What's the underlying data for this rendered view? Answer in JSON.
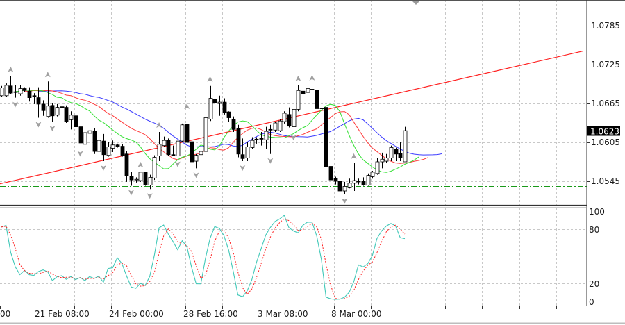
{
  "chart_data": {
    "type": "candlestick",
    "title": "",
    "colors": {
      "bull_body": "#ffffff",
      "bear_body": "#000000",
      "wick": "#000000",
      "jaw": "#3b3bff",
      "teeth": "#ff3b3b",
      "lips": "#35e035",
      "trendline": "#ff2020",
      "support_green": "#1a9a1a",
      "support_orange": "#ff5a1f",
      "bid_line": "#c0c0c0",
      "stoch_main": "#40c8b8",
      "stoch_signal": "#ff2020",
      "grid": "#c8c8c8",
      "fractal": "#a0a0a0"
    },
    "ohlc": [
      [
        1.0677,
        1.0692,
        1.0675,
        1.0689
      ],
      [
        1.0677,
        1.0696,
        1.0675,
        1.0693
      ],
      [
        1.0692,
        1.0707,
        1.0679,
        1.0681
      ],
      [
        1.0682,
        1.0693,
        1.0674,
        1.0683
      ],
      [
        1.068,
        1.0693,
        1.0677,
        1.0688
      ],
      [
        1.0688,
        1.069,
        1.0683,
        1.0685
      ],
      [
        1.0684,
        1.069,
        1.0668,
        1.0674
      ],
      [
        1.0677,
        1.0681,
        1.0664,
        1.0676
      ],
      [
        1.0674,
        1.069,
        1.0643,
        1.0664
      ],
      [
        1.0664,
        1.067,
        1.0646,
        1.0654
      ],
      [
        1.0645,
        1.0699,
        1.0643,
        1.0661
      ],
      [
        1.0662,
        1.0666,
        1.0637,
        1.0646
      ],
      [
        1.0647,
        1.0664,
        1.0645,
        1.0659
      ],
      [
        1.066,
        1.0664,
        1.0656,
        1.0659
      ],
      [
        1.0659,
        1.0662,
        1.0635,
        1.0637
      ],
      [
        1.064,
        1.0653,
        1.0625,
        1.0647
      ],
      [
        1.0646,
        1.0661,
        1.0616,
        1.0629
      ],
      [
        1.0629,
        1.0634,
        1.0598,
        1.0604
      ],
      [
        1.0602,
        1.0627,
        1.0598,
        1.062
      ],
      [
        1.0619,
        1.0627,
        1.0615,
        1.0623
      ],
      [
        1.0622,
        1.0627,
        1.0587,
        1.0591
      ],
      [
        1.0591,
        1.0619,
        1.0585,
        1.0608
      ],
      [
        1.0607,
        1.0618,
        1.0576,
        1.0586
      ],
      [
        1.0585,
        1.0605,
        1.0583,
        1.0598
      ],
      [
        1.0596,
        1.0608,
        1.059,
        1.0601
      ],
      [
        1.0601,
        1.0603,
        1.0597,
        1.0599
      ],
      [
        1.0599,
        1.0602,
        1.0583,
        1.0585
      ],
      [
        1.0587,
        1.0591,
        1.0544,
        1.0554
      ],
      [
        1.0553,
        1.0559,
        1.0538,
        1.0547
      ],
      [
        1.0547,
        1.0551,
        1.0543,
        1.0548
      ],
      [
        1.0546,
        1.056,
        1.0544,
        1.0559
      ],
      [
        1.0559,
        1.056,
        1.0538,
        1.0539
      ],
      [
        1.0539,
        1.0555,
        1.0533,
        1.0551
      ],
      [
        1.055,
        1.0585,
        1.0547,
        1.0582
      ],
      [
        1.0584,
        1.0621,
        1.0576,
        1.0602
      ],
      [
        1.06,
        1.0614,
        1.0598,
        1.0608
      ],
      [
        1.0608,
        1.0611,
        1.0584,
        1.0586
      ],
      [
        1.0586,
        1.06,
        1.0584,
        1.0585
      ],
      [
        1.0584,
        1.0627,
        1.0582,
        1.0607
      ],
      [
        1.0607,
        1.0634,
        1.0605,
        1.0632
      ],
      [
        1.0633,
        1.065,
        1.0603,
        1.0605
      ],
      [
        1.0606,
        1.0611,
        1.0573,
        1.0575
      ],
      [
        1.0576,
        1.0587,
        1.0565,
        1.0585
      ],
      [
        1.0586,
        1.0595,
        1.0582,
        1.0591
      ],
      [
        1.0591,
        1.0657,
        1.0589,
        1.0643
      ],
      [
        1.0641,
        1.0692,
        1.0638,
        1.0673
      ],
      [
        1.0672,
        1.068,
        1.0646,
        1.0666
      ],
      [
        1.0665,
        1.0677,
        1.0646,
        1.0667
      ],
      [
        1.0667,
        1.0673,
        1.0648,
        1.0651
      ],
      [
        1.0652,
        1.0653,
        1.0637,
        1.0643
      ],
      [
        1.0641,
        1.0645,
        1.0621,
        1.0625
      ],
      [
        1.0627,
        1.0632,
        1.0582,
        1.0587
      ],
      [
        1.0586,
        1.0611,
        1.0576,
        1.058
      ],
      [
        1.0581,
        1.0606,
        1.0576,
        1.0598
      ],
      [
        1.0597,
        1.0613,
        1.0595,
        1.0608
      ],
      [
        1.061,
        1.0613,
        1.0603,
        1.0609
      ],
      [
        1.0611,
        1.0621,
        1.06,
        1.061
      ],
      [
        1.0609,
        1.0629,
        1.0595,
        1.0622
      ],
      [
        1.0625,
        1.0632,
        1.0587,
        1.0624
      ],
      [
        1.0624,
        1.0637,
        1.0621,
        1.0635
      ],
      [
        1.0623,
        1.0641,
        1.0621,
        1.0638
      ],
      [
        1.0637,
        1.0653,
        1.0634,
        1.065
      ],
      [
        1.0648,
        1.0659,
        1.0628,
        1.063
      ],
      [
        1.0629,
        1.0664,
        1.0623,
        1.0656
      ],
      [
        1.0656,
        1.0693,
        1.0653,
        1.0685
      ],
      [
        1.0684,
        1.0691,
        1.0668,
        1.068
      ],
      [
        1.0682,
        1.0691,
        1.0677,
        1.0688
      ],
      [
        1.0687,
        1.0694,
        1.0683,
        1.0686
      ],
      [
        1.0685,
        1.0693,
        1.0653,
        1.0657
      ],
      [
        1.0658,
        1.0659,
        1.0653,
        1.0657
      ],
      [
        1.0659,
        1.0661,
        1.0565,
        1.0567
      ],
      [
        1.0568,
        1.057,
        1.0544,
        1.0547
      ],
      [
        1.0549,
        1.0552,
        1.054,
        1.0545
      ],
      [
        1.0545,
        1.0549,
        1.0527,
        1.053
      ],
      [
        1.053,
        1.0544,
        1.0525,
        1.0537
      ],
      [
        1.0536,
        1.0549,
        1.0534,
        1.0542
      ],
      [
        1.0542,
        1.0573,
        1.053,
        1.0546
      ],
      [
        1.0545,
        1.0549,
        1.054,
        1.0544
      ],
      [
        1.0545,
        1.0551,
        1.0538,
        1.054
      ],
      [
        1.0539,
        1.0557,
        1.0538,
        1.0554
      ],
      [
        1.0552,
        1.0561,
        1.0549,
        1.0559
      ],
      [
        1.0557,
        1.0581,
        1.0555,
        1.0575
      ],
      [
        1.0575,
        1.0589,
        1.0565,
        1.0579
      ],
      [
        1.0576,
        1.0587,
        1.0573,
        1.0581
      ],
      [
        1.0581,
        1.06,
        1.0576,
        1.0597
      ],
      [
        1.0594,
        1.0597,
        1.0576,
        1.0587
      ],
      [
        1.0588,
        1.0605,
        1.0576,
        1.0581
      ],
      [
        1.0575,
        1.0629,
        1.0575,
        1.0623
      ]
    ],
    "indicators": {
      "alligator": {
        "jaw_period": 13,
        "jaw_shift": 8,
        "teeth_period": 8,
        "teeth_shift": 5,
        "lips_period": 5,
        "lips_shift": 3
      },
      "stochastic": {
        "k": 5,
        "d": 3,
        "slowing": 3,
        "levels": [
          100,
          80,
          20,
          0
        ]
      },
      "fractals": true
    },
    "trendline": {
      "start_bar": -0.3,
      "start_price": 1.0541,
      "end_bar": 125.5,
      "end_price": 1.0746
    },
    "horizontal_lines": [
      {
        "name": "support-green",
        "price": 1.0538
      },
      {
        "name": "support-orange",
        "price": 1.0521
      }
    ],
    "current_price": "1.0623",
    "ylim": [
      1.051,
      1.0825
    ],
    "price_axis": {
      "labels": [
        "1.0785",
        "1.0725",
        "1.0665",
        "1.0605",
        "1.0545"
      ]
    },
    "stoch_axis": {
      "labels": [
        "100",
        "80",
        "20",
        "0"
      ]
    },
    "time_axis": {
      "labels": [
        "00",
        "21 Feb 08:00",
        "24 Feb 00:00",
        "28 Feb 16:00",
        "3 Mar 08:00",
        "8 Mar 00:00"
      ]
    },
    "grid": true
  }
}
